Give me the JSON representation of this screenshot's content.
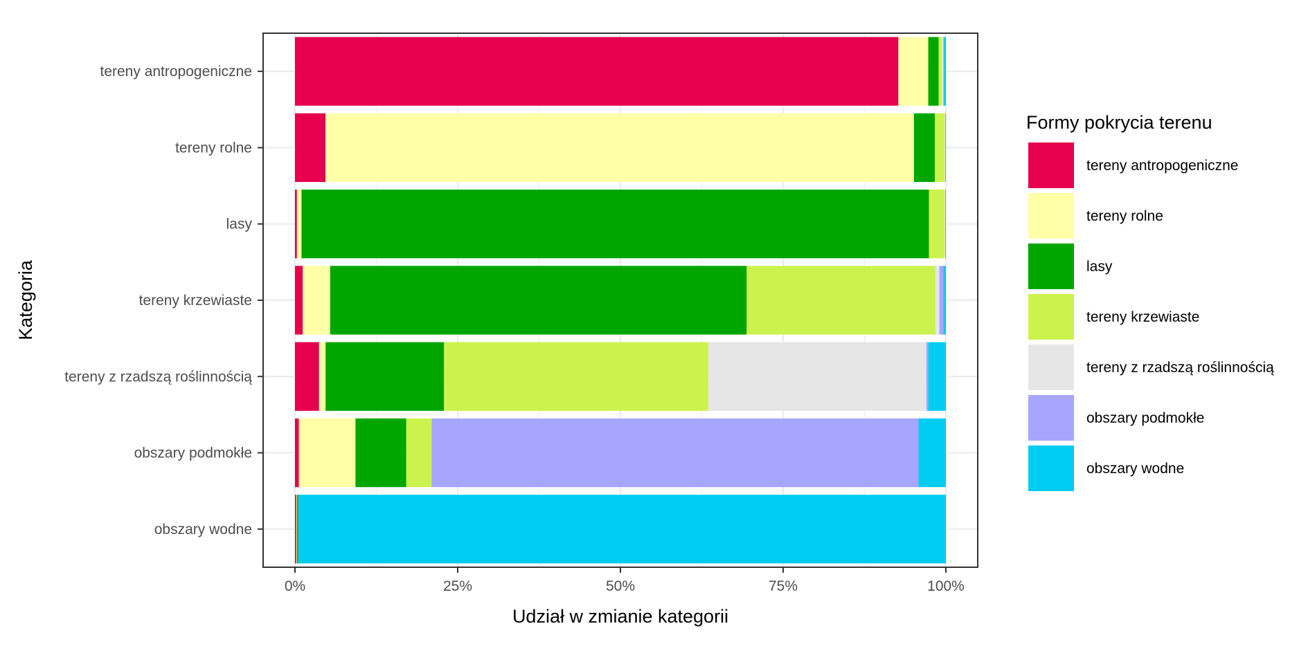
{
  "chart_data": {
    "type": "bar",
    "orientation": "horizontal",
    "stacked": "percent",
    "xlabel": "Udział w zmianie kategorii",
    "ylabel": "Kategoria",
    "xlim": [
      0,
      1
    ],
    "x_ticks": [
      {
        "value": 0,
        "label": "0%"
      },
      {
        "value": 0.25,
        "label": "25%"
      },
      {
        "value": 0.5,
        "label": "50%"
      },
      {
        "value": 0.75,
        "label": "75%"
      },
      {
        "value": 1,
        "label": "100%"
      }
    ],
    "grid": true,
    "legend": {
      "title": "Formy pokrycia terenu",
      "position": "right"
    },
    "categories": [
      "tereny antropogeniczne",
      "tereny rolne",
      "lasy",
      "tereny krzewiaste",
      "tereny z rzadszą roślinnością",
      "obszary podmokłe",
      "obszary wodne"
    ],
    "series": [
      {
        "name": "tereny antropogeniczne",
        "color": "#E6004D",
        "values": [
          0.927,
          0.047,
          0.003,
          0.012,
          0.037,
          0.006,
          0.002
        ]
      },
      {
        "name": "tereny rolne",
        "color": "#FFFFA8",
        "values": [
          0.046,
          0.904,
          0.007,
          0.042,
          0.01,
          0.087,
          0.001
        ]
      },
      {
        "name": "lasy",
        "color": "#00A600",
        "values": [
          0.016,
          0.032,
          0.964,
          0.64,
          0.182,
          0.078,
          0.002
        ]
      },
      {
        "name": "tereny krzewiaste",
        "color": "#CCF24D",
        "values": [
          0.005,
          0.015,
          0.024,
          0.29,
          0.406,
          0.039,
          0.0
        ]
      },
      {
        "name": "tereny z rzadszą roślinnością",
        "color": "#E6E6E6",
        "values": [
          0.002,
          0.001,
          0.001,
          0.006,
          0.335,
          0.0,
          0.0
        ]
      },
      {
        "name": "obszary podmokłe",
        "color": "#A6A6FF",
        "values": [
          0.001,
          0.0,
          0.0,
          0.006,
          0.003,
          0.748,
          0.0
        ]
      },
      {
        "name": "obszary wodne",
        "color": "#00CCF2",
        "values": [
          0.003,
          0.001,
          0.001,
          0.004,
          0.027,
          0.042,
          0.995
        ]
      }
    ]
  }
}
